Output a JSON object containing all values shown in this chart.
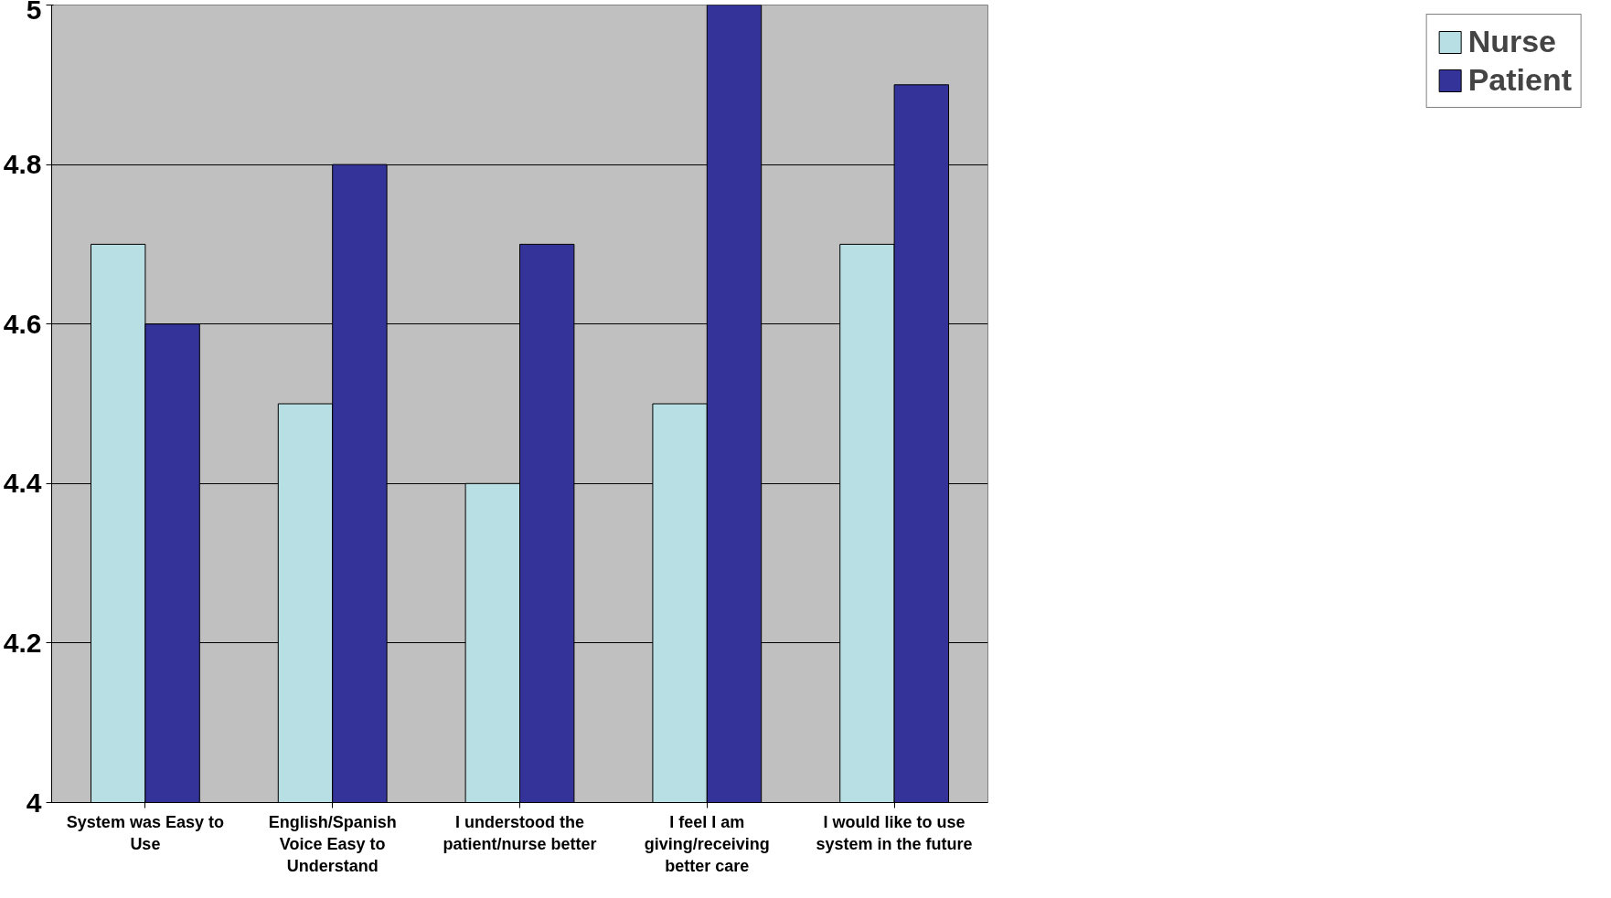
{
  "chart_data": {
    "type": "bar",
    "categories": [
      "System was Easy to Use",
      "English/Spanish Voice Easy to Understand",
      "I understood the patient/nurse better",
      "I feel I am giving/receiving better care",
      "I would like to use system in the future"
    ],
    "series": [
      {
        "name": "Nurse",
        "color": "#b8dfe3",
        "values": [
          4.7,
          4.5,
          4.4,
          4.5,
          4.7
        ]
      },
      {
        "name": "Patient",
        "color": "#333399",
        "values": [
          4.6,
          4.8,
          4.7,
          5.0,
          4.9
        ]
      }
    ],
    "ylim": [
      4,
      5
    ],
    "yticks": [
      4,
      4.2,
      4.4,
      4.6,
      4.8,
      5
    ],
    "grid": "y",
    "legend": "right"
  }
}
